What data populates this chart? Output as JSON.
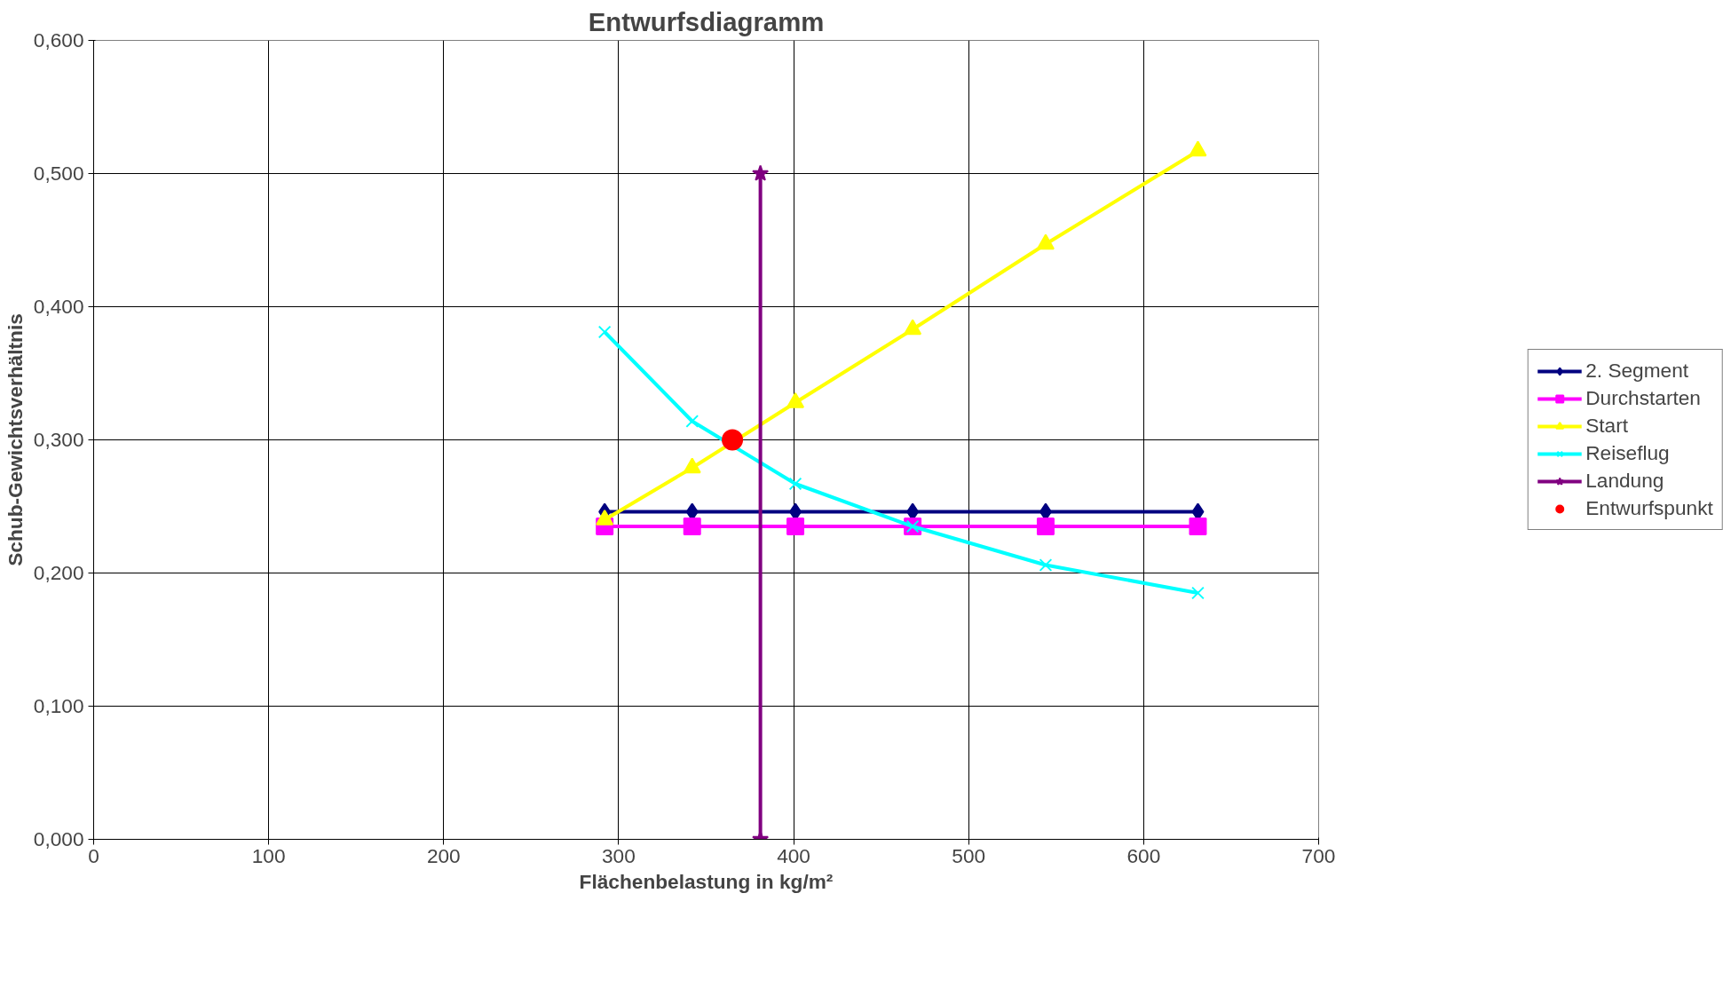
{
  "chart_data": {
    "type": "line",
    "title": "Entwurfsdiagramm",
    "xlabel": "Flächenbelastung in kg/m²",
    "ylabel": "Schub-Gewichtsverhältnis",
    "xlim": [
      0,
      700
    ],
    "xticks": [
      0,
      100,
      200,
      300,
      400,
      500,
      600,
      700
    ],
    "ylim": [
      0,
      0.6
    ],
    "yticks": [
      {
        "value": 0,
        "label": "0,000"
      },
      {
        "value": 0.1,
        "label": "0,100"
      },
      {
        "value": 0.2,
        "label": "0,200"
      },
      {
        "value": 0.3,
        "label": "0,300"
      },
      {
        "value": 0.4,
        "label": "0,400"
      },
      {
        "value": 0.5,
        "label": "0,500"
      },
      {
        "value": 0.6,
        "label": "0,600"
      }
    ],
    "grid": true,
    "legend": "right",
    "series": [
      {
        "name": "2. Segment",
        "color": "#000080",
        "marker": "diamond",
        "x": [
          292,
          342,
          401,
          468,
          544,
          631
        ],
        "values": [
          0.246,
          0.246,
          0.246,
          0.246,
          0.246,
          0.246
        ]
      },
      {
        "name": "Durchstarten",
        "color": "#ff00ff",
        "marker": "square",
        "x": [
          292,
          342,
          401,
          468,
          544,
          631
        ],
        "values": [
          0.235,
          0.235,
          0.235,
          0.235,
          0.235,
          0.235
        ]
      },
      {
        "name": "Start",
        "color": "#ffff00",
        "marker": "triangle",
        "x": [
          292,
          342,
          401,
          468,
          544,
          631
        ],
        "values": [
          0.24,
          0.279,
          0.328,
          0.383,
          0.447,
          0.517
        ]
      },
      {
        "name": "Reiseflug",
        "color": "#00ffff",
        "marker": "cross",
        "x": [
          292,
          342,
          401,
          468,
          544,
          631
        ],
        "values": [
          0.381,
          0.314,
          0.267,
          0.235,
          0.206,
          0.185
        ]
      },
      {
        "name": "Landung",
        "color": "#800080",
        "marker": "star",
        "x": [
          381,
          381
        ],
        "values": [
          0,
          0.5
        ]
      },
      {
        "name": "Entwurfspunkt",
        "type": "scatter",
        "color": "#ff0000",
        "marker": "circle",
        "x": [
          365
        ],
        "values": [
          0.3
        ]
      }
    ]
  }
}
